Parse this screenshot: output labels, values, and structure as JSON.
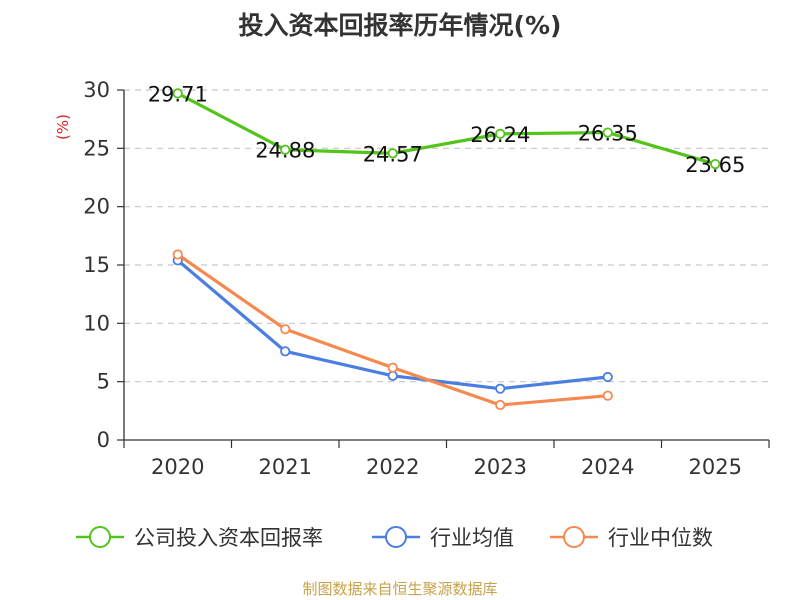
{
  "chart_data": {
    "type": "line",
    "title": "投入资本回报率历年情况(%)",
    "ylabel": "(%)",
    "xlabel": "",
    "categories": [
      "2020",
      "2021",
      "2022",
      "2023",
      "2024",
      "2025"
    ],
    "ylim": [
      0,
      30
    ],
    "yticks": [
      0,
      5,
      10,
      15,
      20,
      25,
      30
    ],
    "grid": true,
    "legend_position": "bottom",
    "series": [
      {
        "name": "公司投入资本回报率",
        "color": "#52c41a",
        "values": [
          29.71,
          24.88,
          24.57,
          26.24,
          26.35,
          23.65
        ],
        "labels": [
          "29.71",
          "24.88",
          "24.57",
          "26.24",
          "26.35",
          "23.65"
        ]
      },
      {
        "name": "行业均值",
        "color": "#4a7ee0",
        "values": [
          15.4,
          7.6,
          5.5,
          4.4,
          5.4,
          null
        ]
      },
      {
        "name": "行业中位数",
        "color": "#f5894f",
        "values": [
          15.9,
          9.5,
          6.2,
          3.0,
          3.8,
          null
        ]
      }
    ],
    "source": "制图数据来自恒生聚源数据库"
  }
}
